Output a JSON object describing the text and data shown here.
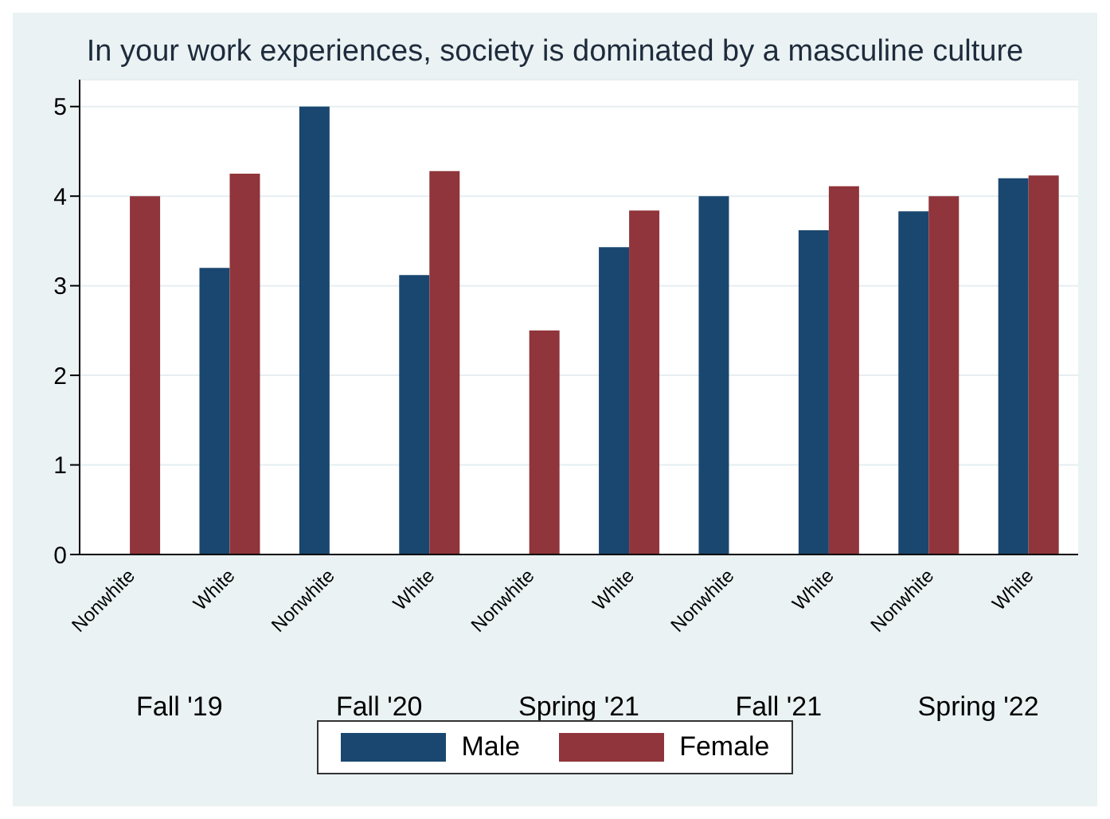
{
  "chart_data": {
    "type": "bar",
    "title": "In your work experiences, society is dominated by a masculine culture",
    "categories": [
      "Nonwhite",
      "White",
      "Nonwhite",
      "White",
      "Nonwhite",
      "White",
      "Nonwhite",
      "White",
      "Nonwhite",
      "White"
    ],
    "annotations": [
      "Fall '19",
      "Fall '20",
      "Spring '21",
      "Fall '21",
      "Spring '22"
    ],
    "series": [
      {
        "name": "Male",
        "color": "#1a476f",
        "values": [
          null,
          3.2,
          5,
          3.12,
          null,
          3.43,
          4,
          3.62,
          3.83,
          4.2
        ]
      },
      {
        "name": "Female",
        "color": "#90353b",
        "values": [
          4,
          4.25,
          null,
          4.28,
          2.5,
          3.84,
          null,
          4.11,
          4,
          4.23
        ]
      }
    ],
    "ylim": [
      0,
      5.3
    ],
    "yticks": [
      0,
      1,
      2,
      3,
      4,
      5
    ],
    "grid": "y",
    "legend": "bottom"
  }
}
